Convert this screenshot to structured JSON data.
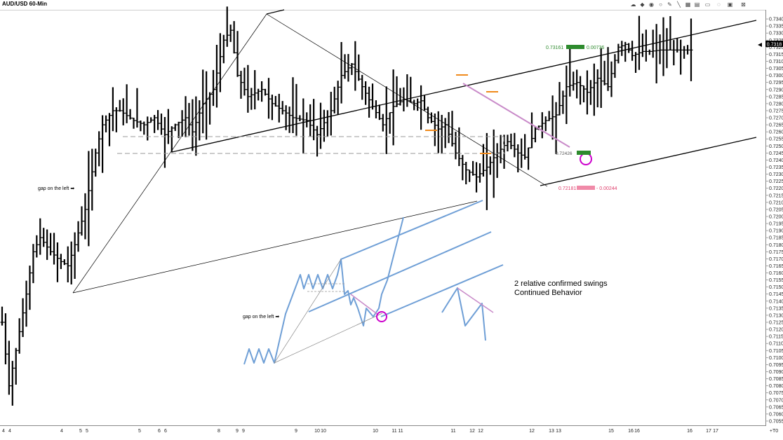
{
  "window": {
    "title": "AUD/USD 60-Min",
    "toolbar_icons": [
      "cloud-icon",
      "fill-icon",
      "circle-tool-icon",
      "ellipse-tool-icon",
      "pencil-icon",
      "line-tool-icon",
      "fib-grid-icon",
      "channel-tool-icon",
      "text-box-icon",
      "snap-icon",
      "panel-icon",
      "close-icon"
    ]
  },
  "chart_data": {
    "type": "bar",
    "symbol": "AUD/USD",
    "timeframe": "60-Min",
    "ylim": [
      0.7052,
      0.7345
    ],
    "y_ticks": [
      "0.7340",
      "0.7335",
      "0.7330",
      "0.7325",
      "0.7320",
      "0.7315",
      "0.7310",
      "0.7305",
      "0.7300",
      "0.7295",
      "0.7290",
      "0.7285",
      "0.7280",
      "0.7275",
      "0.7270",
      "0.7265",
      "0.7260",
      "0.7255",
      "0.7250",
      "0.7245",
      "0.7240",
      "0.7235",
      "0.7230",
      "0.7225",
      "0.7220",
      "0.7215",
      "0.7210",
      "0.7205",
      "0.7200",
      "0.7195",
      "0.7190",
      "0.7185",
      "0.7180",
      "0.7175",
      "0.7170",
      "0.7165",
      "0.7160",
      "0.7155",
      "0.7150",
      "0.7145",
      "0.7140",
      "0.7135",
      "0.7130",
      "0.7125",
      "0.7120",
      "0.7115",
      "0.7110",
      "0.7105",
      "0.7100",
      "0.7095",
      "0.7090",
      "0.7085",
      "0.7080",
      "0.7075",
      "0.7070",
      "0.7065",
      "0.7060",
      "0.7055"
    ],
    "x_ticks": [
      "4",
      "4",
      "4",
      "5",
      "5",
      "5",
      "6",
      "6",
      "8",
      "9",
      "9",
      "9",
      "10",
      "10",
      "10",
      "11",
      "11",
      "11",
      "12",
      "12",
      "12",
      "13",
      "13",
      "15",
      "16",
      "16",
      "16",
      "17",
      "17",
      "+T0"
    ],
    "last_price": "0.7318",
    "n_bars": 200,
    "key_points": [
      {
        "i": 0,
        "p": 0.7125
      },
      {
        "i": 2,
        "p": 0.708
      },
      {
        "i": 4,
        "p": 0.7105
      },
      {
        "i": 7,
        "p": 0.7145
      },
      {
        "i": 9,
        "p": 0.7175
      },
      {
        "i": 11,
        "p": 0.7185
      },
      {
        "i": 14,
        "p": 0.7175
      },
      {
        "i": 17,
        "p": 0.7168
      },
      {
        "i": 19,
        "p": 0.7165
      },
      {
        "i": 21,
        "p": 0.718
      },
      {
        "i": 24,
        "p": 0.7205
      },
      {
        "i": 27,
        "p": 0.7245
      },
      {
        "i": 29,
        "p": 0.7265
      },
      {
        "i": 32,
        "p": 0.7275
      },
      {
        "i": 34,
        "p": 0.7275
      },
      {
        "i": 38,
        "p": 0.7268
      },
      {
        "i": 41,
        "p": 0.7265
      },
      {
        "i": 44,
        "p": 0.727
      },
      {
        "i": 47,
        "p": 0.7258
      },
      {
        "i": 50,
        "p": 0.7265
      },
      {
        "i": 53,
        "p": 0.727
      },
      {
        "i": 55,
        "p": 0.726
      },
      {
        "i": 58,
        "p": 0.728
      },
      {
        "i": 61,
        "p": 0.729
      },
      {
        "i": 64,
        "p": 0.7325
      },
      {
        "i": 66,
        "p": 0.7332
      },
      {
        "i": 68,
        "p": 0.73
      },
      {
        "i": 71,
        "p": 0.7285
      },
      {
        "i": 75,
        "p": 0.729
      },
      {
        "i": 78,
        "p": 0.728
      },
      {
        "i": 81,
        "p": 0.7275
      },
      {
        "i": 84,
        "p": 0.727
      },
      {
        "i": 88,
        "p": 0.7268
      },
      {
        "i": 91,
        "p": 0.7258
      },
      {
        "i": 95,
        "p": 0.7275
      },
      {
        "i": 98,
        "p": 0.73
      },
      {
        "i": 101,
        "p": 0.7308
      },
      {
        "i": 104,
        "p": 0.7292
      },
      {
        "i": 107,
        "p": 0.7278
      },
      {
        "i": 110,
        "p": 0.7265
      },
      {
        "i": 113,
        "p": 0.7278
      },
      {
        "i": 116,
        "p": 0.7283
      },
      {
        "i": 119,
        "p": 0.728
      },
      {
        "i": 121,
        "p": 0.7282
      },
      {
        "i": 123,
        "p": 0.727
      },
      {
        "i": 126,
        "p": 0.7262
      },
      {
        "i": 128,
        "p": 0.7265
      },
      {
        "i": 131,
        "p": 0.7245
      },
      {
        "i": 134,
        "p": 0.7233
      },
      {
        "i": 137,
        "p": 0.7228
      },
      {
        "i": 140,
        "p": 0.7235
      },
      {
        "i": 143,
        "p": 0.7245
      },
      {
        "i": 146,
        "p": 0.7253
      },
      {
        "i": 149,
        "p": 0.7245
      },
      {
        "i": 151,
        "p": 0.7242
      },
      {
        "i": 154,
        "p": 0.7262
      },
      {
        "i": 157,
        "p": 0.7268
      },
      {
        "i": 160,
        "p": 0.7272
      },
      {
        "i": 163,
        "p": 0.7292
      },
      {
        "i": 166,
        "p": 0.7295
      },
      {
        "i": 169,
        "p": 0.7288
      },
      {
        "i": 172,
        "p": 0.7298
      },
      {
        "i": 175,
        "p": 0.7292
      },
      {
        "i": 178,
        "p": 0.732
      },
      {
        "i": 180,
        "p": 0.7322
      },
      {
        "i": 182,
        "p": 0.7314
      },
      {
        "i": 185,
        "p": 0.7317
      },
      {
        "i": 187,
        "p": 0.7317
      },
      {
        "i": 190,
        "p": 0.7318
      },
      {
        "i": 199,
        "p": 0.7318
      }
    ],
    "annotations": {
      "gap_label": "gap on the left ➡",
      "note_line1": "2 relative confirmed swings",
      "note_line2": "Continued Behavior",
      "upper_marker_price": "0.73161",
      "upper_marker_diff": "0.00736",
      "lower_marker_price": "0.72181",
      "lower_marker_diff": "- 0.00244",
      "mid_marker_price": "0.72426"
    },
    "colors": {
      "bars": "#000000",
      "channel_lines": "#000000",
      "dashed_levels": "#999999",
      "sketch": "#6f9fd6",
      "pink_line": "#c98bc9",
      "circle": "#cc00cc",
      "orange_marks": "#f08a1c",
      "green_marker": "#2e8b2e",
      "red_marker": "#e0406e",
      "last_price_bg": "#000000"
    }
  }
}
